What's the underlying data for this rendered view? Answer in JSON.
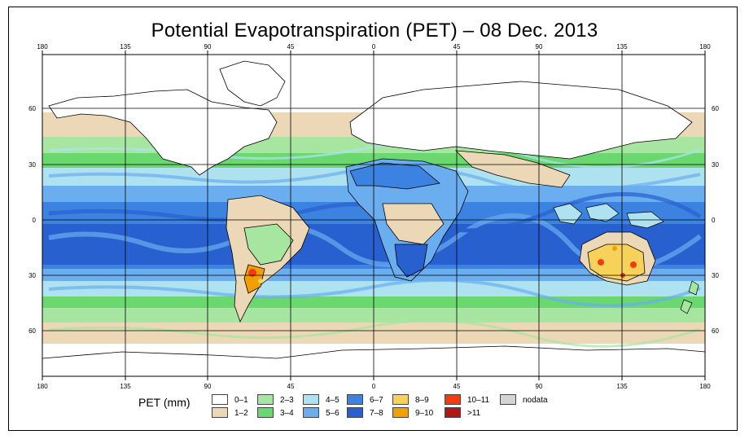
{
  "title": "Potential Evapotranspiration (PET) – 08 Dec. 2013",
  "axes": {
    "lon_ticks": [
      "180",
      "135",
      "90",
      "45",
      "0",
      "45",
      "90",
      "135",
      "180"
    ],
    "lat_ticks": [
      "60",
      "30",
      "0",
      "30",
      "60"
    ]
  },
  "legend": {
    "label": "PET (mm)",
    "items": [
      {
        "label": "0–1",
        "color": "#ffffff"
      },
      {
        "label": "1–2",
        "color": "#ecd8b6"
      },
      {
        "label": "2–3",
        "color": "#a6e6a0"
      },
      {
        "label": "3–4",
        "color": "#6ad86e"
      },
      {
        "label": "4–5",
        "color": "#aee2f0"
      },
      {
        "label": "5–6",
        "color": "#6aaef0"
      },
      {
        "label": "6–7",
        "color": "#3c82e0"
      },
      {
        "label": "7–8",
        "color": "#2860d0"
      },
      {
        "label": "8–9",
        "color": "#f6d25a"
      },
      {
        "label": "9–10",
        "color": "#f2a000"
      },
      {
        "label": "10–11",
        "color": "#f03c10"
      },
      {
        "label": ">11",
        "color": "#b01818"
      },
      {
        "label": "nodata",
        "color": "#d4d4d4"
      }
    ]
  }
}
